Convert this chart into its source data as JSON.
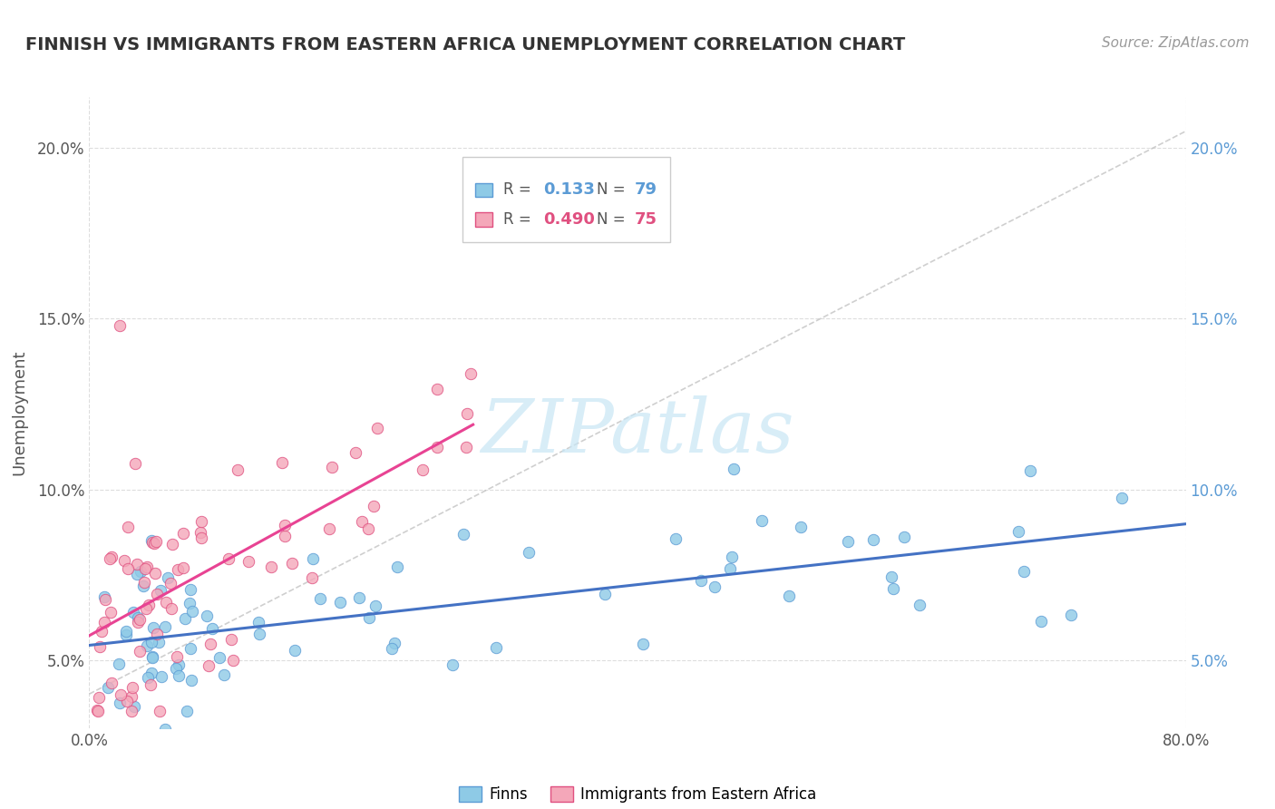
{
  "title": "FINNISH VS IMMIGRANTS FROM EASTERN AFRICA UNEMPLOYMENT CORRELATION CHART",
  "source_text": "Source: ZipAtlas.com",
  "ylabel": "Unemployment",
  "xlim": [
    0.0,
    0.8
  ],
  "ylim": [
    0.03,
    0.215
  ],
  "ytick_positions": [
    0.05,
    0.1,
    0.15,
    0.2
  ],
  "ytick_labels": [
    "5.0%",
    "10.0%",
    "15.0%",
    "20.0%"
  ],
  "xtick_positions": [
    0.0,
    0.8
  ],
  "xtick_labels": [
    "0.0%",
    "80.0%"
  ],
  "legend_R1": "0.133",
  "legend_N1": "79",
  "legend_R2": "0.490",
  "legend_N2": "75",
  "color_finns": "#8ecae6",
  "color_finns_edge": "#5b9bd5",
  "color_immigrants": "#f4a7b9",
  "color_immigrants_edge": "#e05080",
  "color_line_finns": "#4472c4",
  "color_line_immigrants": "#e84393",
  "color_diagonal": "#bbbbbb",
  "watermark_color": "#c8e6f5",
  "background_color": "#ffffff",
  "grid_color": "#dddddd"
}
